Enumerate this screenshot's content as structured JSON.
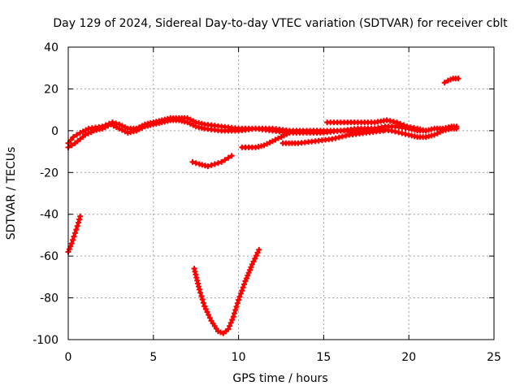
{
  "chart_data": {
    "type": "scatter",
    "title": "Day 129 of 2024, Sidereal Day-to-day VTEC variation (SDTVAR) for receiver cblt",
    "xlabel": "GPS time / hours",
    "ylabel": "SDTVAR / TECUs",
    "xlim": [
      0,
      25
    ],
    "ylim": [
      -100,
      40
    ],
    "xticks": [
      0,
      5,
      10,
      15,
      20,
      25
    ],
    "yticks": [
      -100,
      -80,
      -60,
      -40,
      -20,
      0,
      20,
      40
    ],
    "xtick_labels": [
      "0",
      "5",
      "10",
      "15",
      "20",
      "25"
    ],
    "ytick_labels": [
      "-100",
      "-80",
      "-60",
      "-40",
      "-20",
      "0",
      "20",
      "40"
    ],
    "grid": true,
    "legend": "none",
    "marker": "plus",
    "series_color": "#ff0000",
    "series": [
      {
        "name": "main-upper",
        "x": [
          0,
          0.3,
          0.7,
          1.2,
          2,
          2.6,
          3,
          3.5,
          4,
          4.5,
          5,
          5.5,
          6,
          6.5,
          7,
          7.5,
          8,
          9,
          10,
          11,
          12,
          13,
          14,
          15,
          16,
          17,
          18,
          18.6,
          19.2,
          20,
          20.5,
          21,
          21.5,
          22,
          22.5,
          22.8
        ],
        "y": [
          -6,
          -3,
          -1,
          1,
          2,
          4,
          3,
          1,
          1,
          3,
          4,
          5,
          6,
          6,
          6,
          4,
          3,
          2,
          1,
          1,
          1,
          0,
          0,
          0,
          0,
          1,
          1,
          2,
          2,
          1,
          0,
          0,
          1,
          1,
          2,
          2
        ]
      },
      {
        "name": "main-lower",
        "x": [
          0,
          0.4,
          1,
          1.5,
          2,
          2.5,
          3,
          3.5,
          4,
          4.5,
          5,
          5.5,
          6,
          6.5,
          7,
          7.5,
          8,
          9,
          10,
          11,
          12,
          13,
          14,
          15,
          16,
          17,
          18,
          19,
          20,
          20.5,
          21,
          21.5,
          22,
          22.5,
          22.8
        ],
        "y": [
          -8,
          -6,
          -2,
          0,
          1,
          3,
          1,
          -1,
          0,
          2,
          3,
          4,
          5,
          5,
          4,
          2,
          1,
          0,
          0,
          1,
          0,
          -1,
          -1,
          -1,
          0,
          0,
          1,
          0,
          -2,
          -3,
          -3,
          -2,
          0,
          1,
          1
        ]
      },
      {
        "name": "seg-a",
        "x": [
          15.2,
          16,
          17,
          18,
          18.7,
          19.3,
          19.9,
          20.5,
          21
        ],
        "y": [
          4,
          4,
          4,
          4,
          5,
          4,
          2,
          1,
          0
        ]
      },
      {
        "name": "seg-b",
        "x": [
          12.6,
          13.5,
          14.5,
          15.5,
          16.5,
          17.5,
          18.5
        ],
        "y": [
          -6,
          -6,
          -5,
          -4,
          -2,
          -1,
          0
        ]
      },
      {
        "name": "seg-c",
        "x": [
          10.2,
          10.6,
          11,
          11.5,
          12,
          12.5,
          13
        ],
        "y": [
          -8,
          -8,
          -8,
          -7,
          -5,
          -3,
          -1
        ]
      },
      {
        "name": "seg-d",
        "x": [
          7.3,
          7.7,
          8.2,
          8.6,
          9,
          9.4,
          9.6
        ],
        "y": [
          -15,
          -16,
          -17,
          -16,
          -15,
          -13,
          -12
        ]
      },
      {
        "name": "seg-e",
        "x": [
          22.1,
          22.3,
          22.6,
          22.9
        ],
        "y": [
          23,
          24,
          25,
          25
        ]
      },
      {
        "name": "seg-f",
        "x": [
          0,
          0.2,
          0.4,
          0.6,
          0.7
        ],
        "y": [
          -58,
          -54,
          -49,
          -44,
          -41
        ]
      },
      {
        "name": "seg-g",
        "x": [
          7.4,
          7.7,
          8,
          8.4,
          8.8,
          9.1,
          9.4,
          9.7,
          10,
          10.4,
          10.8,
          11.2
        ],
        "y": [
          -66,
          -76,
          -84,
          -91,
          -96,
          -97,
          -95,
          -89,
          -81,
          -72,
          -64,
          -57
        ]
      }
    ]
  }
}
